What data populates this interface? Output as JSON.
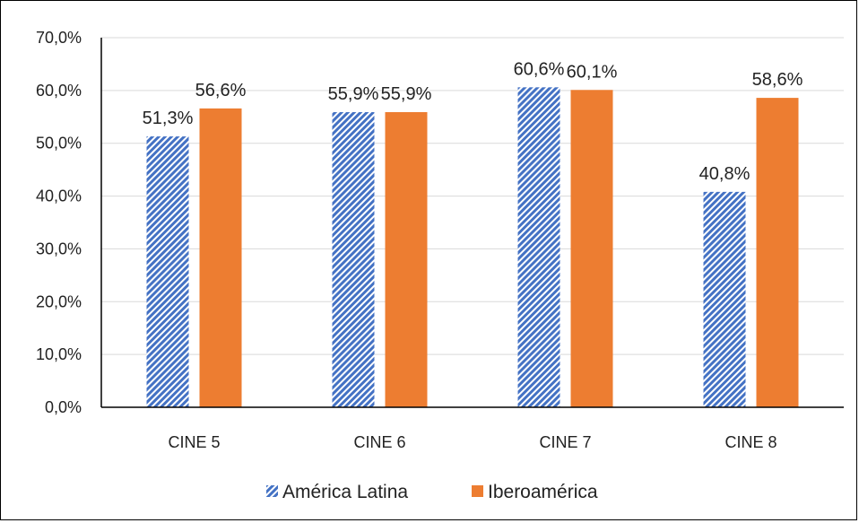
{
  "chart_data": {
    "type": "bar",
    "categories": [
      "CINE 5",
      "CINE 6",
      "CINE 7",
      "CINE 8"
    ],
    "series": [
      {
        "name": "América Latina",
        "values": [
          51.3,
          55.9,
          60.6,
          40.8
        ],
        "labels": [
          "51,3%",
          "55,9%",
          "60,6%",
          "40,8%"
        ],
        "color": "#4472C4",
        "pattern": "diagonal-hatch"
      },
      {
        "name": "Iberoamérica",
        "values": [
          56.6,
          55.9,
          60.1,
          58.6
        ],
        "labels": [
          "56,6%",
          "55,9%",
          "60,1%",
          "58,6%"
        ],
        "color": "#ED7D31",
        "pattern": "solid"
      }
    ],
    "yticks": [
      "0,0%",
      "10,0%",
      "20,0%",
      "30,0%",
      "40,0%",
      "50,0%",
      "60,0%",
      "70,0%"
    ],
    "ylim": [
      0,
      70
    ],
    "title": "",
    "xlabel": "",
    "ylabel": "",
    "grid": true,
    "legend_position": "bottom"
  }
}
